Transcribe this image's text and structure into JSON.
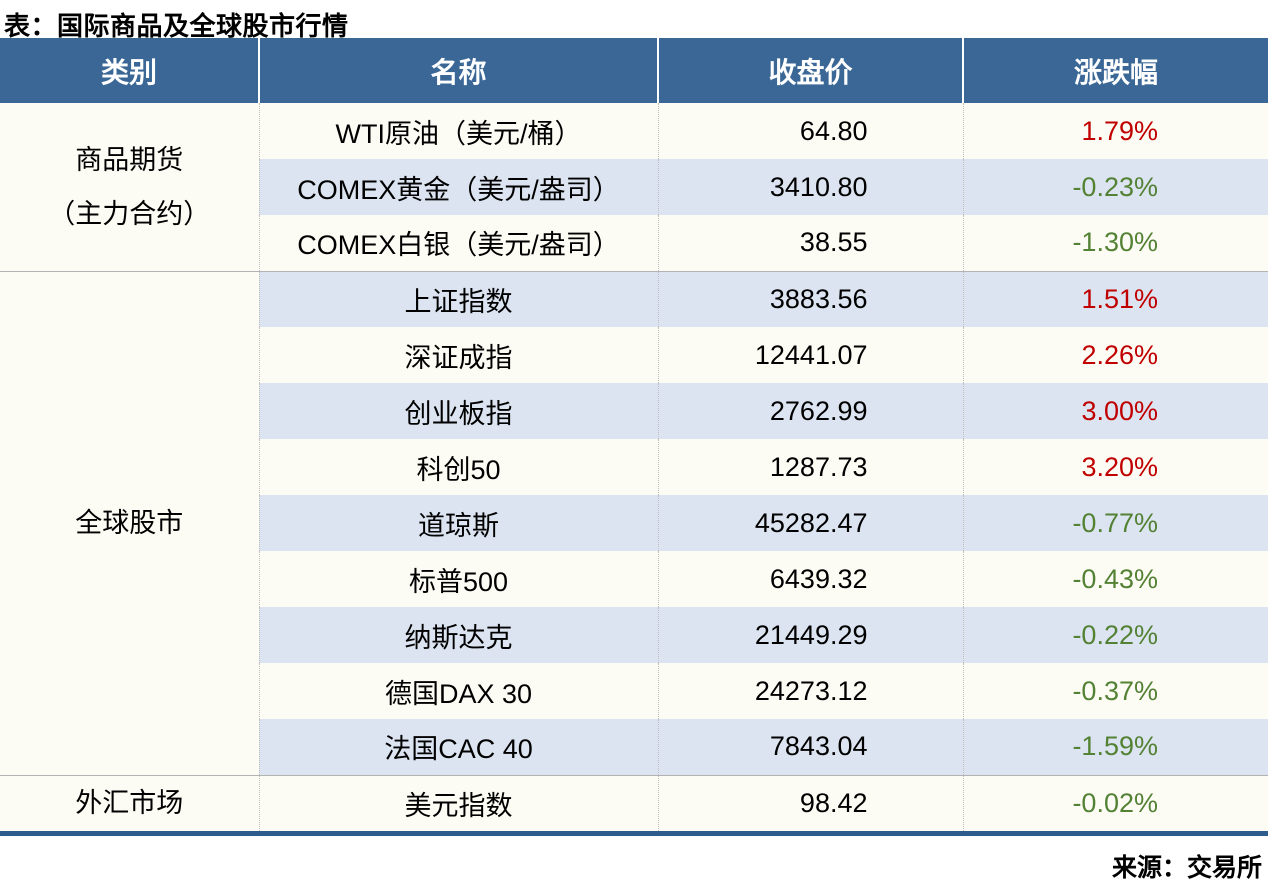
{
  "title": "表：国际商品及全球股市行情",
  "source": "来源：交易所",
  "columns": [
    "类别",
    "名称",
    "收盘价",
    "涨跌幅"
  ],
  "colors": {
    "header_bg": "#3A6796",
    "header_text": "#FFFFFF",
    "stripe": "#DBE4F0",
    "cream": "#FDFCF4",
    "up": "#C00000",
    "down": "#548235",
    "section_line": "#B3B3B3",
    "bottom_bar": "#2E5C8C"
  },
  "groups": [
    {
      "category": "商品期货（主力合约）",
      "category_lines": [
        "商品期货",
        "（主力合约）"
      ],
      "rows": [
        {
          "name": "WTI原油（美元/桶）",
          "close": "64.80",
          "change": "1.79%",
          "direction": "up"
        },
        {
          "name": "COMEX黄金（美元/盎司）",
          "close": "3410.80",
          "change": "-0.23%",
          "direction": "down"
        },
        {
          "name": "COMEX白银（美元/盎司）",
          "close": "38.55",
          "change": "-1.30%",
          "direction": "down"
        }
      ]
    },
    {
      "category": "全球股市",
      "category_lines": [
        "全球股市"
      ],
      "rows": [
        {
          "name": "上证指数",
          "close": "3883.56",
          "change": "1.51%",
          "direction": "up"
        },
        {
          "name": "深证成指",
          "close": "12441.07",
          "change": "2.26%",
          "direction": "up"
        },
        {
          "name": "创业板指",
          "close": "2762.99",
          "change": "3.00%",
          "direction": "up"
        },
        {
          "name": "科创50",
          "close": "1287.73",
          "change": "3.20%",
          "direction": "up"
        },
        {
          "name": "道琼斯",
          "close": "45282.47",
          "change": "-0.77%",
          "direction": "down"
        },
        {
          "name": "标普500",
          "close": "6439.32",
          "change": "-0.43%",
          "direction": "down"
        },
        {
          "name": "纳斯达克",
          "close": "21449.29",
          "change": "-0.22%",
          "direction": "down"
        },
        {
          "name": "德国DAX 30",
          "close": "24273.12",
          "change": "-0.37%",
          "direction": "down"
        },
        {
          "name": "法国CAC 40",
          "close": "7843.04",
          "change": "-1.59%",
          "direction": "down"
        }
      ]
    },
    {
      "category": "外汇市场",
      "category_lines": [
        "外汇市场"
      ],
      "rows": [
        {
          "name": "美元指数",
          "close": "98.42",
          "change": "-0.02%",
          "direction": "down"
        }
      ]
    }
  ],
  "chart_data": {
    "type": "table",
    "title": "表：国际商品及全球股市行情",
    "source": "来源：交易所",
    "columns": [
      "类别",
      "名称",
      "收盘价",
      "涨跌幅"
    ],
    "rows": [
      [
        "商品期货（主力合约）",
        "WTI原油（美元/桶）",
        64.8,
        "1.79%"
      ],
      [
        "商品期货（主力合约）",
        "COMEX黄金（美元/盎司）",
        3410.8,
        "-0.23%"
      ],
      [
        "商品期货（主力合约）",
        "COMEX白银（美元/盎司）",
        38.55,
        "-1.30%"
      ],
      [
        "全球股市",
        "上证指数",
        3883.56,
        "1.51%"
      ],
      [
        "全球股市",
        "深证成指",
        12441.07,
        "2.26%"
      ],
      [
        "全球股市",
        "创业板指",
        2762.99,
        "3.00%"
      ],
      [
        "全球股市",
        "科创50",
        1287.73,
        "3.20%"
      ],
      [
        "全球股市",
        "道琼斯",
        45282.47,
        "-0.77%"
      ],
      [
        "全球股市",
        "标普500",
        6439.32,
        "-0.43%"
      ],
      [
        "全球股市",
        "纳斯达克",
        21449.29,
        "-0.22%"
      ],
      [
        "全球股市",
        "德国DAX 30",
        24273.12,
        "-0.37%"
      ],
      [
        "全球股市",
        "法国CAC 40",
        7843.04,
        "-1.59%"
      ],
      [
        "外汇市场",
        "美元指数",
        98.42,
        "-0.02%"
      ]
    ],
    "color_coding": {
      "positive_change": "red #C00000",
      "negative_change": "green #548235"
    }
  }
}
